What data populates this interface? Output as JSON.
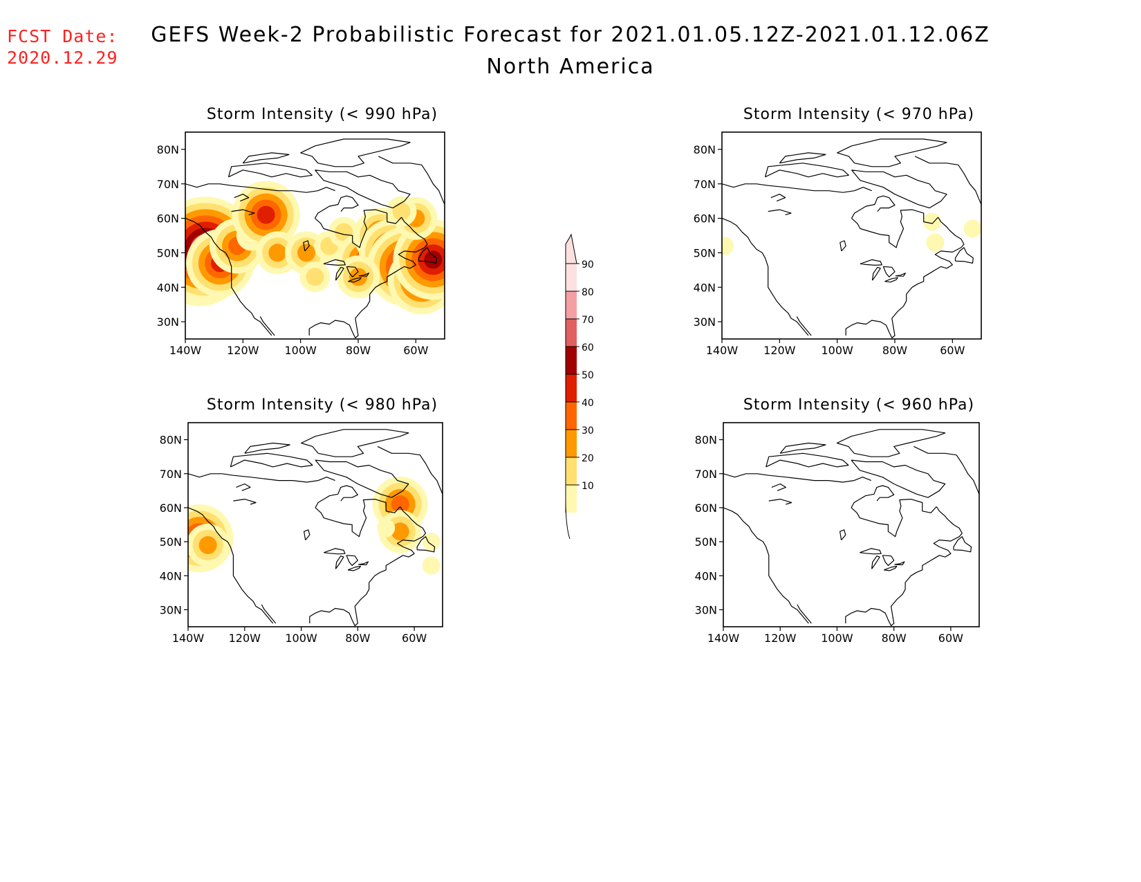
{
  "header": {
    "fcst_label": "FCST Date:",
    "fcst_date": "2020.12.29",
    "title": "GEFS Week-2 Probabilistic Forecast for 2021.01.05.12Z-2021.01.12.06Z",
    "subtitle": "North America"
  },
  "axes": {
    "lat_labels": [
      "80N",
      "70N",
      "60N",
      "50N",
      "40N",
      "30N"
    ],
    "lat_values": [
      80,
      70,
      60,
      50,
      40,
      30
    ],
    "lon_labels": [
      "140W",
      "120W",
      "100W",
      "80W",
      "60W"
    ],
    "lon_values": [
      -140,
      -120,
      -100,
      -80,
      -60
    ]
  },
  "panels": [
    {
      "id": "p990",
      "title": "Storm Intensity (< 990 hPa)",
      "blobs": [
        {
          "lon": -135,
          "lat": 48,
          "level": 7
        },
        {
          "lon": -133,
          "lat": 51,
          "level": 8
        },
        {
          "lon": -128,
          "lat": 47,
          "level": 5
        },
        {
          "lon": -122,
          "lat": 52,
          "level": 4
        },
        {
          "lon": -117,
          "lat": 55,
          "level": 2
        },
        {
          "lon": -112,
          "lat": 61,
          "level": 5
        },
        {
          "lon": -108,
          "lat": 50,
          "level": 3
        },
        {
          "lon": -98,
          "lat": 50,
          "level": 3
        },
        {
          "lon": -95,
          "lat": 43,
          "level": 2
        },
        {
          "lon": -90,
          "lat": 52,
          "level": 2
        },
        {
          "lon": -85,
          "lat": 56,
          "level": 2
        },
        {
          "lon": -78,
          "lat": 48,
          "level": 4
        },
        {
          "lon": -72,
          "lat": 55,
          "level": 4
        },
        {
          "lon": -68,
          "lat": 50,
          "level": 5
        },
        {
          "lon": -63,
          "lat": 46,
          "level": 6
        },
        {
          "lon": -58,
          "lat": 42,
          "level": 5
        },
        {
          "lon": -54,
          "lat": 48,
          "level": 6
        },
        {
          "lon": -60,
          "lat": 60,
          "level": 3
        },
        {
          "lon": -65,
          "lat": 62,
          "level": 2
        },
        {
          "lon": -80,
          "lat": 43,
          "level": 3
        }
      ]
    },
    {
      "id": "p970",
      "title": "Storm Intensity (< 970 hPa)",
      "blobs": [
        {
          "lon": -139,
          "lat": 52,
          "level": 1
        },
        {
          "lon": -66,
          "lat": 53,
          "level": 1
        },
        {
          "lon": -67,
          "lat": 59,
          "level": 1
        },
        {
          "lon": -53,
          "lat": 57,
          "level": 1
        }
      ]
    },
    {
      "id": "p980",
      "title": "Storm Intensity (< 980 hPa)",
      "blobs": [
        {
          "lon": -136,
          "lat": 51,
          "level": 5
        },
        {
          "lon": -133,
          "lat": 49,
          "level": 3
        },
        {
          "lon": -65,
          "lat": 61,
          "level": 4
        },
        {
          "lon": -65,
          "lat": 53,
          "level": 3
        },
        {
          "lon": -70,
          "lat": 54,
          "level": 1
        },
        {
          "lon": -54,
          "lat": 50,
          "level": 1
        },
        {
          "lon": -54,
          "lat": 43,
          "level": 1
        }
      ]
    },
    {
      "id": "p960",
      "title": "Storm Intensity (< 960 hPa)",
      "blobs": []
    }
  ],
  "colorbar": {
    "labels": [
      "90",
      "80",
      "70",
      "60",
      "50",
      "40",
      "30",
      "20",
      "10"
    ],
    "colors": [
      "#fde0e0",
      "#f4a0a2",
      "#e06060",
      "#a00000",
      "#e01e00",
      "#ff6600",
      "#ff9900",
      "#ffe070",
      "#fff8b0"
    ]
  }
}
